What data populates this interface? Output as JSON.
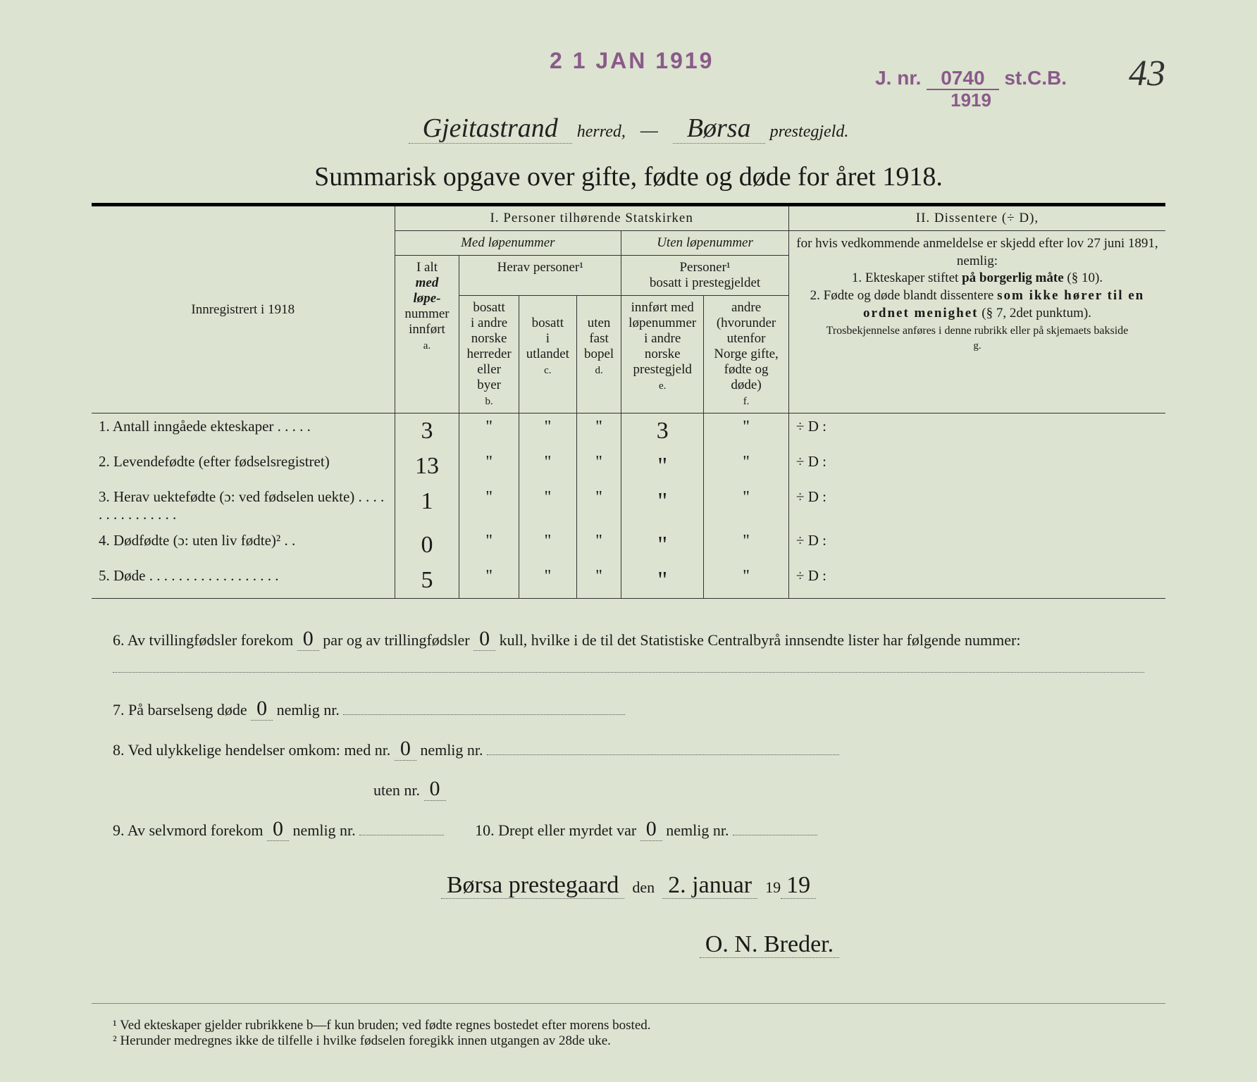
{
  "stamps": {
    "date": "2 1 JAN 1919",
    "jnr_prefix": "J. nr.",
    "jnr_num": "0740",
    "jnr_suffix": "st.C.B.",
    "jnr_year": "1919"
  },
  "page_number": "43",
  "header": {
    "herred": "Gjeitastrand",
    "herred_label": "herred,",
    "prestegjeld": "Børsa",
    "prestegjeld_label": "prestegjeld."
  },
  "title": "Summarisk opgave over gifte, fødte og døde for året 1918.",
  "table": {
    "reg_label": "Innregistrert i 1918",
    "section1": "I.  Personer tilhørende Statskirken",
    "med_lope": "Med løpenummer",
    "uten_lope": "Uten løpenummer",
    "herav_personer": "Herav personer¹",
    "personer_bosatt": "Personer¹",
    "personer_bosatt2": "bosatt i prestegjeldet",
    "col_a_1": "I alt",
    "col_a_2": "med løpe-",
    "col_a_3": "nummer",
    "col_a_4": "innført",
    "col_a_letter": "a.",
    "col_b_1": "bosatt",
    "col_b_2": "i andre",
    "col_b_3": "norske",
    "col_b_4": "herreder",
    "col_b_5": "eller",
    "col_b_6": "byer",
    "col_b_letter": "b.",
    "col_c_1": "bosatt",
    "col_c_2": "i",
    "col_c_3": "utlandet",
    "col_c_letter": "c.",
    "col_d_1": "uten",
    "col_d_2": "fast",
    "col_d_3": "bopel",
    "col_d_letter": "d.",
    "col_e_1": "innført med",
    "col_e_2": "løpenummer",
    "col_e_3": "i andre",
    "col_e_4": "norske",
    "col_e_5": "prestegjeld",
    "col_e_letter": "e.",
    "col_f_1": "andre",
    "col_f_2": "(hvorunder",
    "col_f_3": "utenfor",
    "col_f_4": "Norge gifte,",
    "col_f_5": "fødte og døde)",
    "col_f_letter": "f.",
    "section2": "II.  Dissentere (÷ D),",
    "diss_text_1": "for hvis vedkommende anmeldelse er skjedd efter lov 27 juni 1891, nemlig:",
    "diss_text_2a": "1. Ekteskaper stiftet ",
    "diss_text_2b": "på borgerlig måte",
    "diss_text_2c": " (§ 10).",
    "diss_text_3a": "2. Fødte og døde blandt dissentere ",
    "diss_text_3b": "som ikke hører til en ordnet menighet",
    "diss_text_3c": " (§ 7, 2det punktum).",
    "diss_text_4": "Trosbekjennelse anføres i denne rubrikk eller på skjemaets bakside",
    "col_g_letter": "g.",
    "rows": [
      {
        "num": "1.",
        "label": "Antall inngåede ekteskaper . . . . .",
        "a": "3",
        "b": "\"",
        "c": "\"",
        "d": "\"",
        "e": "3",
        "f": "\"",
        "g": "÷ D :"
      },
      {
        "num": "2.",
        "label": "Levendefødte (efter fødselsregistret)",
        "a": "13",
        "b": "\"",
        "c": "\"",
        "d": "\"",
        "e": "\"",
        "f": "\"",
        "g": "÷ D :"
      },
      {
        "num": "3.",
        "label": "Herav uektefødte (ɔ: ved fødselen uekte) . . . . . . . . . . . . . . .",
        "a": "1",
        "b": "\"",
        "c": "\"",
        "d": "\"",
        "e": "\"",
        "f": "\"",
        "g": "÷ D :"
      },
      {
        "num": "4.",
        "label": "Dødfødte (ɔ: uten liv fødte)² . .",
        "a": "0",
        "b": "\"",
        "c": "\"",
        "d": "\"",
        "e": "\"",
        "f": "\"",
        "g": "÷ D :"
      },
      {
        "num": "5.",
        "label": "Døde . . . . . . . . . . . . . . . . . .",
        "a": "5",
        "b": "\"",
        "c": "\"",
        "d": "\"",
        "e": "\"",
        "f": "\"",
        "g": "÷ D :"
      }
    ]
  },
  "below": {
    "q6a": "6.  Av tvillingfødsler forekom ",
    "q6_twin": "0",
    "q6b": " par og av trillingfødsler ",
    "q6_trip": "0",
    "q6c": " kull, hvilke i de til det Statistiske Centralbyrå innsendte lister har følgende nummer:",
    "q7a": "7.  På barselseng døde ",
    "q7_val": "0",
    "q7b": " nemlig nr. ",
    "q8a": "8.  Ved ulykkelige hendelser omkom:  med nr.",
    "q8_med": "0",
    "q8b": "   nemlig nr. ",
    "q8c": "uten nr.",
    "q8_uten": "0",
    "q9a": "9.  Av selvmord forekom ",
    "q9_val": "0",
    "q9b": " nemlig nr. ",
    "q10a": "10.  Drept eller myrdet var ",
    "q10_val": "0",
    "q10b": " nemlig nr. "
  },
  "signature": {
    "place": "Børsa prestegaard",
    "den": "den",
    "date": "2. januar",
    "year_prefix": "19",
    "year_hw": "19",
    "name": "O. N. Breder."
  },
  "footnotes": {
    "f1": "¹  Ved ekteskaper gjelder rubrikkene b—f kun bruden; ved fødte regnes bostedet efter morens bosted.",
    "f2": "²  Herunder medregnes ikke de tilfelle i hvilke fødselen foregikk innen utgangen av 28de uke."
  }
}
